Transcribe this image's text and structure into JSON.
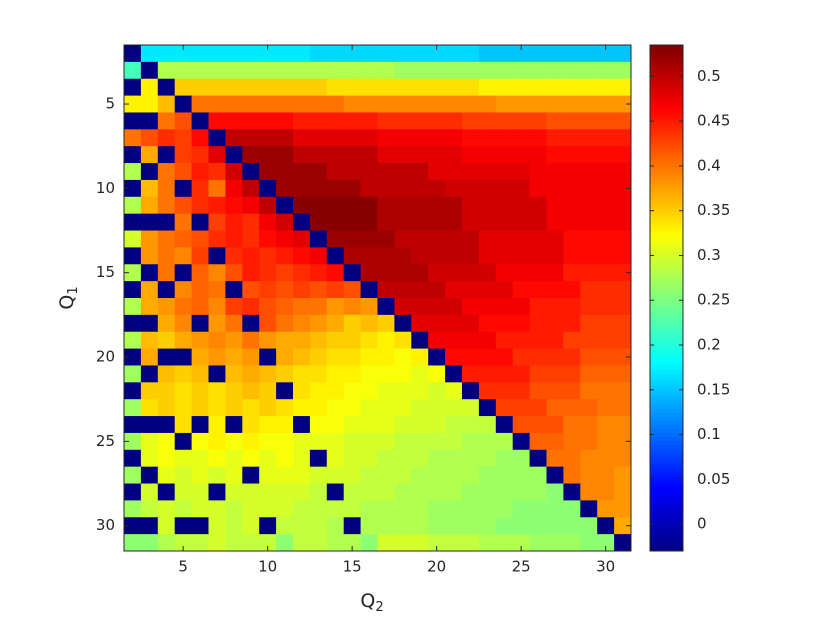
{
  "chart_data": {
    "type": "heatmap",
    "colormap": "jet",
    "xlabel": "Q",
    "xlabel_sub": "2",
    "ylabel": "Q",
    "ylabel_sub": "1",
    "x": [
      2,
      3,
      4,
      5,
      6,
      7,
      8,
      9,
      10,
      11,
      12,
      13,
      14,
      15,
      16,
      17,
      18,
      19,
      20,
      21,
      22,
      23,
      24,
      25,
      26,
      27,
      28,
      29,
      30,
      31
    ],
    "y": [
      2,
      3,
      4,
      5,
      6,
      7,
      8,
      9,
      10,
      11,
      12,
      13,
      14,
      15,
      16,
      17,
      18,
      19,
      20,
      21,
      22,
      23,
      24,
      25,
      26,
      27,
      28,
      29,
      30,
      31
    ],
    "xlim": [
      1.5,
      31.5
    ],
    "ylim": [
      1.5,
      31.5
    ],
    "y_reversed": true,
    "xticks": [
      5,
      10,
      15,
      20,
      25,
      30
    ],
    "yticks": [
      5,
      10,
      15,
      20,
      25,
      30
    ],
    "clim": [
      -0.03,
      0.535
    ],
    "cticks": [
      0,
      0.05,
      0.1,
      0.15,
      0.2,
      0.25,
      0.3,
      0.35,
      0.4,
      0.45,
      0.5
    ],
    "values": [
      [
        -0.03,
        0.17,
        0.17,
        0.17,
        0.17,
        0.17,
        0.17,
        0.17,
        0.17,
        0.17,
        0.17,
        0.16,
        0.16,
        0.16,
        0.16,
        0.16,
        0.16,
        0.16,
        0.16,
        0.16,
        0.16,
        0.15,
        0.15,
        0.15,
        0.15,
        0.15,
        0.15,
        0.15,
        0.15,
        0.15
      ],
      [
        0.22,
        -0.03,
        0.28,
        0.28,
        0.28,
        0.28,
        0.28,
        0.28,
        0.28,
        0.28,
        0.28,
        0.28,
        0.28,
        0.28,
        0.28,
        0.28,
        0.27,
        0.27,
        0.27,
        0.27,
        0.27,
        0.27,
        0.27,
        0.27,
        0.27,
        0.27,
        0.27,
        0.27,
        0.27,
        0.27
      ],
      [
        -0.03,
        0.33,
        -0.03,
        0.35,
        0.35,
        0.35,
        0.35,
        0.35,
        0.35,
        0.35,
        0.35,
        0.35,
        0.34,
        0.34,
        0.34,
        0.34,
        0.34,
        0.34,
        0.34,
        0.34,
        0.34,
        0.33,
        0.33,
        0.33,
        0.33,
        0.33,
        0.33,
        0.33,
        0.33,
        0.33
      ],
      [
        0.33,
        0.33,
        0.36,
        -0.03,
        0.4,
        0.4,
        0.4,
        0.4,
        0.4,
        0.4,
        0.4,
        0.4,
        0.4,
        0.39,
        0.39,
        0.39,
        0.39,
        0.39,
        0.39,
        0.39,
        0.39,
        0.39,
        0.38,
        0.38,
        0.38,
        0.38,
        0.38,
        0.38,
        0.38,
        0.38
      ],
      [
        -0.03,
        -0.03,
        0.4,
        0.42,
        -0.03,
        0.46,
        0.46,
        0.46,
        0.46,
        0.46,
        0.45,
        0.45,
        0.45,
        0.45,
        0.45,
        0.44,
        0.44,
        0.44,
        0.44,
        0.44,
        0.43,
        0.43,
        0.43,
        0.43,
        0.43,
        0.42,
        0.42,
        0.42,
        0.42,
        0.42
      ],
      [
        0.4,
        0.42,
        0.44,
        0.43,
        0.46,
        -0.03,
        0.5,
        0.5,
        0.5,
        0.5,
        0.48,
        0.48,
        0.48,
        0.48,
        0.48,
        0.47,
        0.47,
        0.47,
        0.47,
        0.47,
        0.46,
        0.46,
        0.46,
        0.46,
        0.46,
        0.45,
        0.45,
        0.45,
        0.45,
        0.45
      ],
      [
        -0.03,
        0.37,
        -0.03,
        0.43,
        0.44,
        0.48,
        -0.03,
        0.52,
        0.52,
        0.52,
        0.5,
        0.5,
        0.5,
        0.5,
        0.5,
        0.48,
        0.48,
        0.48,
        0.48,
        0.48,
        0.47,
        0.47,
        0.47,
        0.47,
        0.47,
        0.46,
        0.46,
        0.46,
        0.46,
        0.46
      ],
      [
        0.28,
        -0.03,
        0.4,
        0.42,
        0.45,
        0.44,
        0.49,
        -0.03,
        0.52,
        0.52,
        0.52,
        0.52,
        0.5,
        0.5,
        0.5,
        0.5,
        0.5,
        0.5,
        0.48,
        0.48,
        0.48,
        0.48,
        0.48,
        0.48,
        0.47,
        0.47,
        0.47,
        0.47,
        0.47,
        0.47
      ],
      [
        -0.03,
        0.36,
        0.4,
        -0.03,
        0.44,
        0.4,
        0.47,
        0.5,
        -0.03,
        0.52,
        0.52,
        0.52,
        0.52,
        0.52,
        0.5,
        0.5,
        0.5,
        0.5,
        0.5,
        0.49,
        0.49,
        0.49,
        0.49,
        0.49,
        0.47,
        0.47,
        0.47,
        0.47,
        0.47,
        0.47
      ],
      [
        0.28,
        0.37,
        0.4,
        0.42,
        0.44,
        0.45,
        0.46,
        0.47,
        0.5,
        -0.03,
        0.53,
        0.53,
        0.53,
        0.53,
        0.53,
        0.51,
        0.51,
        0.51,
        0.51,
        0.51,
        0.49,
        0.49,
        0.49,
        0.49,
        0.49,
        0.47,
        0.47,
        0.47,
        0.47,
        0.47
      ],
      [
        -0.03,
        -0.03,
        -0.03,
        0.4,
        -0.03,
        0.43,
        0.45,
        0.44,
        0.47,
        0.49,
        -0.03,
        0.53,
        0.53,
        0.53,
        0.53,
        0.51,
        0.51,
        0.51,
        0.51,
        0.51,
        0.49,
        0.49,
        0.49,
        0.49,
        0.49,
        0.47,
        0.47,
        0.47,
        0.47,
        0.47
      ],
      [
        0.3,
        0.38,
        0.4,
        0.41,
        0.42,
        0.44,
        0.45,
        0.44,
        0.46,
        0.47,
        0.48,
        -0.03,
        0.52,
        0.52,
        0.52,
        0.52,
        0.5,
        0.5,
        0.5,
        0.5,
        0.5,
        0.48,
        0.48,
        0.48,
        0.48,
        0.48,
        0.46,
        0.46,
        0.46,
        0.46
      ],
      [
        -0.03,
        0.38,
        0.4,
        0.39,
        0.43,
        -0.03,
        0.44,
        0.45,
        0.44,
        0.45,
        0.46,
        0.47,
        -0.03,
        0.51,
        0.51,
        0.51,
        0.51,
        0.5,
        0.5,
        0.5,
        0.5,
        0.48,
        0.48,
        0.48,
        0.48,
        0.48,
        0.46,
        0.46,
        0.46,
        0.46
      ],
      [
        0.28,
        -0.03,
        0.4,
        -0.03,
        0.41,
        0.39,
        0.42,
        0.45,
        0.44,
        0.43,
        0.44,
        0.45,
        0.46,
        -0.03,
        0.51,
        0.51,
        0.51,
        0.51,
        0.49,
        0.49,
        0.49,
        0.49,
        0.47,
        0.47,
        0.47,
        0.47,
        0.45,
        0.45,
        0.45,
        0.45
      ],
      [
        -0.03,
        0.37,
        -0.03,
        0.39,
        0.41,
        0.4,
        -0.03,
        0.42,
        0.43,
        0.42,
        0.43,
        0.42,
        0.43,
        0.42,
        -0.03,
        0.5,
        0.5,
        0.5,
        0.5,
        0.48,
        0.48,
        0.48,
        0.48,
        0.46,
        0.46,
        0.46,
        0.46,
        0.44,
        0.44,
        0.44
      ],
      [
        0.28,
        0.37,
        0.38,
        0.4,
        0.41,
        0.39,
        0.43,
        0.44,
        0.42,
        0.41,
        0.4,
        0.4,
        0.38,
        0.39,
        0.38,
        -0.03,
        0.49,
        0.49,
        0.49,
        0.49,
        0.47,
        0.47,
        0.47,
        0.47,
        0.45,
        0.45,
        0.45,
        0.44,
        0.44,
        0.44
      ],
      [
        -0.03,
        -0.03,
        0.37,
        0.39,
        -0.03,
        0.38,
        0.4,
        -0.03,
        0.42,
        0.4,
        0.39,
        0.38,
        0.37,
        0.35,
        0.36,
        0.35,
        -0.03,
        0.48,
        0.48,
        0.48,
        0.48,
        0.46,
        0.46,
        0.46,
        0.45,
        0.45,
        0.45,
        0.43,
        0.43,
        0.43
      ],
      [
        0.28,
        0.36,
        0.35,
        0.37,
        0.38,
        0.39,
        0.38,
        0.4,
        0.38,
        0.37,
        0.37,
        0.36,
        0.35,
        0.35,
        0.34,
        0.33,
        0.34,
        -0.03,
        0.47,
        0.47,
        0.47,
        0.47,
        0.45,
        0.45,
        0.45,
        0.45,
        0.43,
        0.43,
        0.43,
        0.43
      ],
      [
        -0.03,
        0.37,
        -0.03,
        -0.03,
        0.37,
        0.38,
        0.37,
        0.38,
        -0.03,
        0.37,
        0.36,
        0.35,
        0.34,
        0.34,
        0.33,
        0.33,
        0.32,
        0.33,
        -0.03,
        0.46,
        0.46,
        0.46,
        0.46,
        0.44,
        0.44,
        0.44,
        0.44,
        0.42,
        0.42,
        0.42
      ],
      [
        0.27,
        -0.03,
        0.36,
        0.35,
        0.36,
        -0.03,
        0.36,
        0.37,
        0.36,
        0.35,
        0.34,
        0.34,
        0.33,
        0.33,
        0.32,
        0.32,
        0.32,
        0.31,
        0.32,
        -0.03,
        0.45,
        0.45,
        0.45,
        0.45,
        0.43,
        0.43,
        0.43,
        0.41,
        0.41,
        0.41
      ],
      [
        -0.03,
        0.35,
        0.35,
        0.34,
        0.35,
        0.34,
        0.35,
        0.36,
        0.35,
        -0.03,
        0.34,
        0.33,
        0.33,
        0.32,
        0.32,
        0.31,
        0.31,
        0.31,
        0.3,
        0.31,
        -0.03,
        0.44,
        0.44,
        0.44,
        0.42,
        0.42,
        0.42,
        0.4,
        0.4,
        0.4
      ],
      [
        0.27,
        0.34,
        0.35,
        0.34,
        0.35,
        0.34,
        0.35,
        0.34,
        0.35,
        0.34,
        0.33,
        0.33,
        0.32,
        0.32,
        0.31,
        0.31,
        0.31,
        0.3,
        0.3,
        0.3,
        0.3,
        -0.03,
        0.43,
        0.43,
        0.43,
        0.41,
        0.41,
        0.41,
        0.4,
        0.4
      ],
      [
        -0.03,
        -0.03,
        -0.03,
        0.34,
        -0.03,
        0.33,
        -0.03,
        0.34,
        0.33,
        0.33,
        -0.03,
        0.32,
        0.32,
        0.31,
        0.31,
        0.31,
        0.3,
        0.3,
        0.3,
        0.29,
        0.29,
        0.29,
        -0.03,
        0.42,
        0.42,
        0.42,
        0.4,
        0.4,
        0.39,
        0.39
      ],
      [
        0.27,
        0.31,
        0.32,
        -0.03,
        0.32,
        0.33,
        0.32,
        0.33,
        0.32,
        0.32,
        0.31,
        0.31,
        0.31,
        0.3,
        0.3,
        0.3,
        0.29,
        0.29,
        0.29,
        0.29,
        0.28,
        0.28,
        0.28,
        -0.03,
        0.41,
        0.41,
        0.4,
        0.4,
        0.39,
        0.39
      ],
      [
        -0.03,
        0.31,
        0.32,
        0.31,
        0.31,
        0.32,
        0.31,
        0.32,
        0.31,
        0.32,
        0.31,
        -0.03,
        0.31,
        0.3,
        0.3,
        0.29,
        0.29,
        0.29,
        0.28,
        0.28,
        0.28,
        0.28,
        0.27,
        0.27,
        -0.03,
        0.4,
        0.4,
        0.39,
        0.39,
        0.39
      ],
      [
        0.27,
        -0.03,
        0.31,
        0.3,
        0.31,
        0.3,
        0.31,
        -0.03,
        0.31,
        0.31,
        0.31,
        0.3,
        0.3,
        0.3,
        0.29,
        0.29,
        0.29,
        0.28,
        0.28,
        0.28,
        0.28,
        0.27,
        0.27,
        0.27,
        0.27,
        -0.03,
        0.4,
        0.39,
        0.39,
        0.38
      ],
      [
        -0.03,
        0.3,
        -0.03,
        0.3,
        0.3,
        -0.03,
        0.3,
        0.3,
        0.3,
        0.3,
        0.3,
        0.29,
        -0.03,
        0.29,
        0.29,
        0.29,
        0.28,
        0.28,
        0.28,
        0.28,
        0.27,
        0.27,
        0.27,
        0.27,
        0.27,
        0.26,
        -0.03,
        0.39,
        0.39,
        0.38
      ],
      [
        0.27,
        0.29,
        0.3,
        0.29,
        0.3,
        0.3,
        0.29,
        0.3,
        0.3,
        0.3,
        0.29,
        0.29,
        0.29,
        0.29,
        0.28,
        0.28,
        0.28,
        0.28,
        0.27,
        0.27,
        0.27,
        0.27,
        0.27,
        0.26,
        0.26,
        0.26,
        0.26,
        -0.03,
        0.38,
        0.38
      ],
      [
        -0.03,
        -0.03,
        0.3,
        -0.03,
        -0.03,
        0.3,
        0.29,
        0.3,
        -0.03,
        0.29,
        0.29,
        0.29,
        0.28,
        -0.03,
        0.28,
        0.28,
        0.28,
        0.28,
        0.27,
        0.27,
        0.27,
        0.27,
        0.26,
        0.26,
        0.26,
        0.26,
        0.26,
        0.26,
        -0.03,
        0.37
      ],
      [
        0.26,
        0.26,
        0.28,
        0.29,
        0.29,
        0.3,
        0.29,
        0.29,
        0.29,
        0.26,
        0.29,
        0.29,
        0.28,
        0.28,
        0.26,
        0.3,
        0.3,
        0.3,
        0.29,
        0.29,
        0.29,
        0.28,
        0.28,
        0.28,
        0.27,
        0.27,
        0.27,
        0.26,
        0.26,
        -0.03
      ]
    ]
  }
}
